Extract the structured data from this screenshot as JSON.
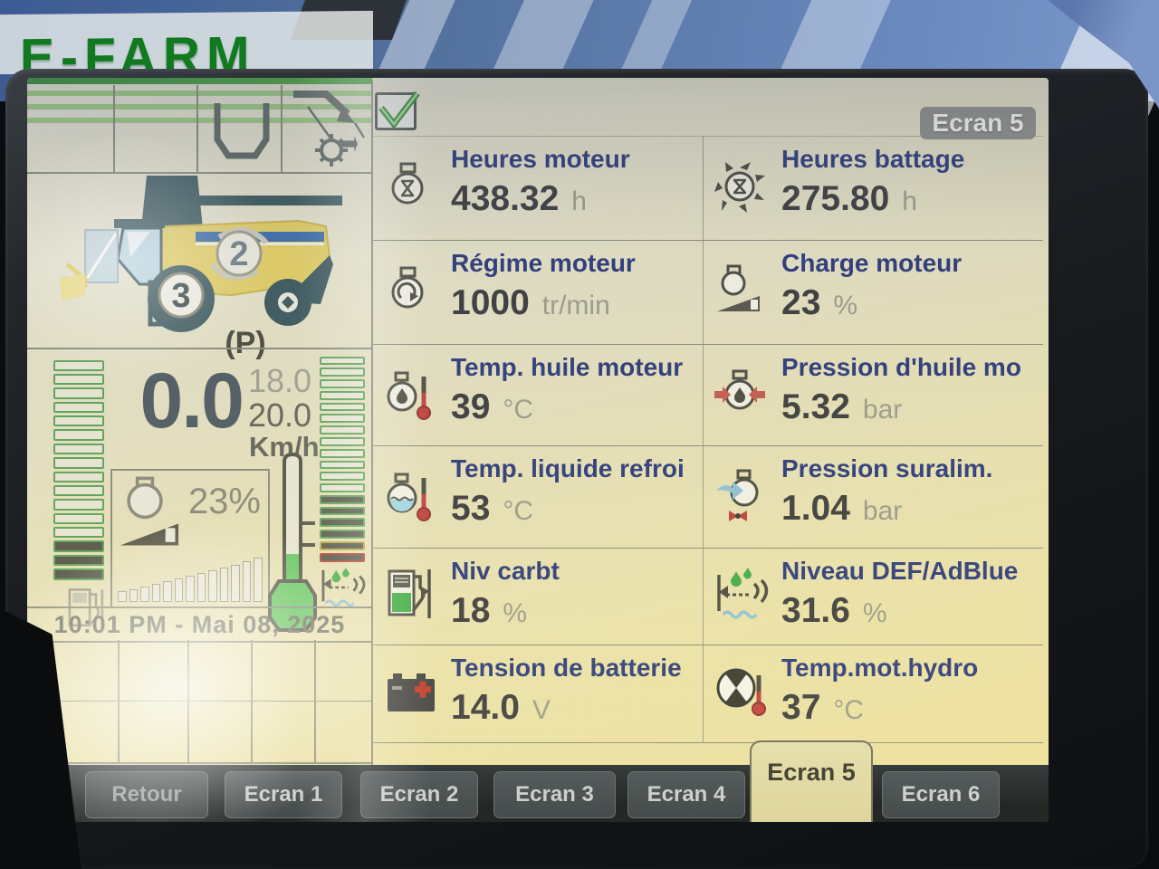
{
  "photo": {
    "watermark": "E-FARM"
  },
  "colors": {
    "label_blue": "#2b3a7e",
    "value_dark": "#3b3c41",
    "unit_gray": "#9c9d8e",
    "screen_yellow": "#ece4b0",
    "accent_green": "#3fae49",
    "alert_red": "#bf4040",
    "tab_dark": "#39434d",
    "stripe_green": "#6cbc4e"
  },
  "screen": {
    "title": "Ecran 5",
    "clock": "10:01 PM - Mai 08, 2025",
    "combine": {
      "body_badge": "2",
      "wheel_badge": "3",
      "parking_label": "(P)"
    },
    "speed": {
      "value": "0.0",
      "upper": "18.0",
      "lower": "20.0",
      "unit": "Km/h"
    },
    "load_box": {
      "percent": "23%"
    },
    "left_panel": {
      "fuel_gauge": {
        "segments": 16,
        "filled": 3
      },
      "def_gauge": {
        "segments": 18,
        "filled": 6
      },
      "load_bars": [
        10,
        12,
        15,
        18,
        21,
        24,
        27,
        30,
        33,
        36,
        39,
        43,
        47
      ]
    },
    "cells": [
      {
        "label": "Heures moteur",
        "value": "438.32",
        "unit": "h"
      },
      {
        "label": "Heures battage",
        "value": "275.80",
        "unit": "h"
      },
      {
        "label": "Régime moteur",
        "value": "1000",
        "unit": "tr/min"
      },
      {
        "label": "Charge moteur",
        "value": "23",
        "unit": "%"
      },
      {
        "label": "Temp. huile moteur",
        "value": "39",
        "unit": "°C"
      },
      {
        "label": "Pression d'huile mo",
        "value": "5.32",
        "unit": "bar"
      },
      {
        "label": "Temp. liquide refroi",
        "value": "53",
        "unit": "°C"
      },
      {
        "label": "Pression suralim.",
        "value": "1.04",
        "unit": "bar"
      },
      {
        "label": "Niv carbt",
        "value": "18",
        "unit": "%"
      },
      {
        "label": "Niveau DEF/AdBlue",
        "value": "31.6",
        "unit": "%"
      },
      {
        "label": "Tension de batterie",
        "value": "14.0",
        "unit": "V"
      },
      {
        "label": "Temp.mot.hydro",
        "value": "37",
        "unit": "°C"
      }
    ],
    "tabs": [
      {
        "label": "Retour",
        "active": false
      },
      {
        "label": "Ecran 1",
        "active": false
      },
      {
        "label": "Ecran 2",
        "active": false
      },
      {
        "label": "Ecran 3",
        "active": false
      },
      {
        "label": "Ecran 4",
        "active": false
      },
      {
        "label": "Ecran 5",
        "active": true
      },
      {
        "label": "Ecran 6",
        "active": false
      }
    ]
  }
}
